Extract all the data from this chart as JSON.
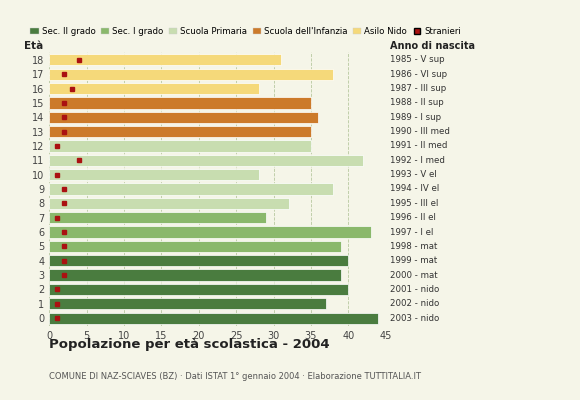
{
  "ages": [
    18,
    17,
    16,
    15,
    14,
    13,
    12,
    11,
    10,
    9,
    8,
    7,
    6,
    5,
    4,
    3,
    2,
    1,
    0
  ],
  "bar_values": [
    44,
    37,
    40,
    39,
    40,
    39,
    43,
    29,
    32,
    38,
    28,
    42,
    35,
    35,
    36,
    35,
    28,
    38,
    31
  ],
  "stranieri": [
    1,
    1,
    1,
    2,
    2,
    2,
    2,
    1,
    2,
    2,
    1,
    4,
    1,
    2,
    2,
    2,
    3,
    2,
    4
  ],
  "right_labels": [
    "1985 - V sup",
    "1986 - VI sup",
    "1987 - III sup",
    "1988 - II sup",
    "1989 - I sup",
    "1990 - III med",
    "1991 - II med",
    "1992 - I med",
    "1993 - V el",
    "1994 - IV el",
    "1995 - III el",
    "1996 - II el",
    "1997 - I el",
    "1998 - mat",
    "1999 - mat",
    "2000 - mat",
    "2001 - nido",
    "2002 - nido",
    "2003 - nido"
  ],
  "bar_colors": [
    "#4a7c3f",
    "#4a7c3f",
    "#4a7c3f",
    "#4a7c3f",
    "#4a7c3f",
    "#8ab86b",
    "#8ab86b",
    "#8ab86b",
    "#c8ddb0",
    "#c8ddb0",
    "#c8ddb0",
    "#c8ddb0",
    "#c8ddb0",
    "#cc7a2a",
    "#cc7a2a",
    "#cc7a2a",
    "#f5d97a",
    "#f5d97a",
    "#f5d97a"
  ],
  "legend_labels": [
    "Sec. II grado",
    "Sec. I grado",
    "Scuola Primaria",
    "Scuola dell'Infanzia",
    "Asilo Nido",
    "Stranieri"
  ],
  "legend_colors": [
    "#4a7c3f",
    "#8ab86b",
    "#c8ddb0",
    "#cc7a2a",
    "#f5d97a",
    "#aa1111"
  ],
  "stranieri_color": "#aa1111",
  "title": "Popolazione per età scolastica - 2004",
  "subtitle": "COMUNE DI NAZ-SCIAVES (BZ) · Dati ISTAT 1° gennaio 2004 · Elaborazione TUTTITALIA.IT",
  "xlabel_eta": "Età",
  "xlabel_anno": "Anno di nascita",
  "xlim": [
    0,
    45
  ],
  "xticks": [
    0,
    5,
    10,
    15,
    20,
    25,
    30,
    35,
    40,
    45
  ],
  "bg_color": "#f5f5e8",
  "grid_color": "#b8c8a0"
}
